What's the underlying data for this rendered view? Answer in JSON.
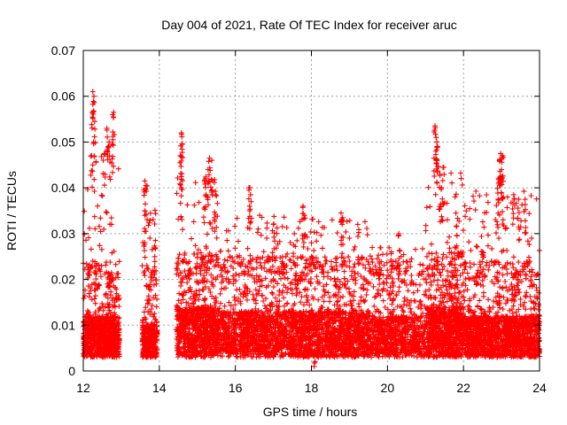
{
  "chart_data": {
    "type": "scatter",
    "title": "Day 004 of 2021, Rate Of TEC Index for receiver aruc",
    "xlabel": "GPS time / hours",
    "ylabel": "ROTI / TECUs",
    "xlim": [
      12,
      24
    ],
    "ylim": [
      0,
      0.07
    ],
    "xticks": [
      12,
      14,
      16,
      18,
      20,
      22,
      24
    ],
    "xtick_labels": [
      "12",
      "14",
      "16",
      "18",
      "20",
      "22",
      "24"
    ],
    "yticks": [
      0,
      0.01,
      0.02,
      0.03,
      0.04,
      0.05,
      0.06,
      0.07
    ],
    "ytick_labels": [
      "0",
      "0.01",
      "0.02",
      "0.03",
      "0.04",
      "0.05",
      "0.06",
      "0.07"
    ],
    "grid": true,
    "marker": "plus",
    "color": "#ff0000",
    "bursts": [
      {
        "start": 12.0,
        "end": 12.95,
        "base_max": 0.012,
        "peak": 0.061,
        "density": 900
      },
      {
        "start": 13.55,
        "end": 13.95,
        "base_max": 0.01,
        "peak": 0.042,
        "density": 380
      },
      {
        "start": 14.45,
        "end": 15.55,
        "base_max": 0.014,
        "peak": 0.052,
        "density": 950
      },
      {
        "start": 15.55,
        "end": 19.55,
        "base_max": 0.013,
        "peak": 0.04,
        "density": 2600
      },
      {
        "start": 19.55,
        "end": 21.0,
        "base_max": 0.012,
        "peak": 0.03,
        "density": 800
      },
      {
        "start": 21.0,
        "end": 22.0,
        "base_max": 0.014,
        "peak": 0.054,
        "density": 850
      },
      {
        "start": 22.0,
        "end": 24.0,
        "base_max": 0.012,
        "peak": 0.048,
        "density": 1500
      }
    ],
    "spikes": [
      {
        "x": 12.25,
        "y": 0.061
      },
      {
        "x": 12.28,
        "y": 0.06
      },
      {
        "x": 12.3,
        "y": 0.0545
      },
      {
        "x": 12.62,
        "y": 0.053
      },
      {
        "x": 12.68,
        "y": 0.05
      },
      {
        "x": 12.8,
        "y": 0.0565
      },
      {
        "x": 12.78,
        "y": 0.0505
      },
      {
        "x": 12.22,
        "y": 0.047
      },
      {
        "x": 12.55,
        "y": 0.0475
      },
      {
        "x": 13.62,
        "y": 0.0415
      },
      {
        "x": 13.65,
        "y": 0.0405
      },
      {
        "x": 13.62,
        "y": 0.034
      },
      {
        "x": 13.9,
        "y": 0.0285
      },
      {
        "x": 14.58,
        "y": 0.052
      },
      {
        "x": 14.6,
        "y": 0.0495
      },
      {
        "x": 14.55,
        "y": 0.047
      },
      {
        "x": 14.58,
        "y": 0.04
      },
      {
        "x": 15.32,
        "y": 0.0465
      },
      {
        "x": 15.38,
        "y": 0.046
      },
      {
        "x": 15.28,
        "y": 0.044
      },
      {
        "x": 15.22,
        "y": 0.042
      },
      {
        "x": 15.48,
        "y": 0.0385
      },
      {
        "x": 16.38,
        "y": 0.04
      },
      {
        "x": 16.4,
        "y": 0.0385
      },
      {
        "x": 17.78,
        "y": 0.036
      },
      {
        "x": 17.82,
        "y": 0.034
      },
      {
        "x": 18.78,
        "y": 0.0345
      },
      {
        "x": 18.82,
        "y": 0.0335
      },
      {
        "x": 21.25,
        "y": 0.0535
      },
      {
        "x": 21.28,
        "y": 0.051
      },
      {
        "x": 21.3,
        "y": 0.05
      },
      {
        "x": 21.32,
        "y": 0.049
      },
      {
        "x": 21.38,
        "y": 0.043
      },
      {
        "x": 21.48,
        "y": 0.0445
      },
      {
        "x": 21.42,
        "y": 0.04
      },
      {
        "x": 21.8,
        "y": 0.0345
      },
      {
        "x": 22.98,
        "y": 0.0475
      },
      {
        "x": 23.02,
        "y": 0.047
      },
      {
        "x": 22.95,
        "y": 0.046
      },
      {
        "x": 23.0,
        "y": 0.044
      },
      {
        "x": 22.92,
        "y": 0.042
      },
      {
        "x": 23.05,
        "y": 0.038
      },
      {
        "x": 23.32,
        "y": 0.0385
      },
      {
        "x": 23.45,
        "y": 0.0375
      },
      {
        "x": 23.62,
        "y": 0.0375
      },
      {
        "x": 17.0,
        "y": 0.032
      },
      {
        "x": 17.55,
        "y": 0.03
      },
      {
        "x": 18.0,
        "y": 0.028
      },
      {
        "x": 18.1,
        "y": 0.002
      },
      {
        "x": 20.3,
        "y": 0.03
      },
      {
        "x": 22.5,
        "y": 0.026
      }
    ]
  }
}
